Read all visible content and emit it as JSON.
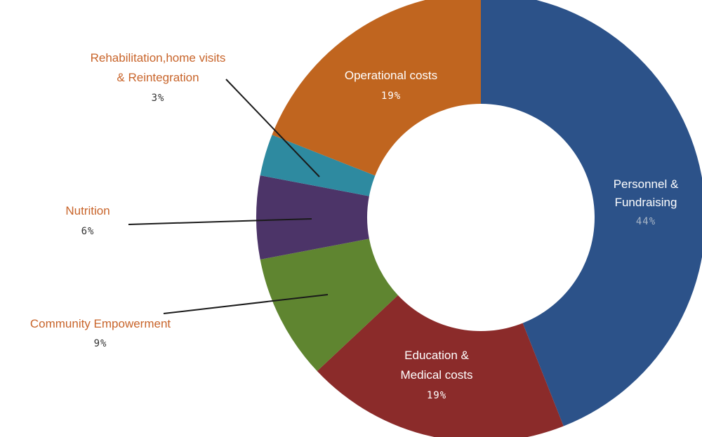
{
  "chart_data": {
    "type": "pie",
    "variant": "donut",
    "slices": [
      {
        "label_lines": [
          "Personnel &",
          "Fundraising"
        ],
        "value_label": "44%",
        "value": 44,
        "color": "#2c5289",
        "label_color": "#ffffff",
        "value_color": "#a8b5c6",
        "placement": "inside"
      },
      {
        "label_lines": [
          "Education &",
          "Medical costs"
        ],
        "value_label": "19%",
        "value": 19,
        "color": "#8b2b2a",
        "label_color": "#ffffff",
        "value_color": "#ffffff",
        "placement": "inside"
      },
      {
        "label_lines": [
          "Community Empowerment"
        ],
        "value_label": "9%",
        "value": 9,
        "color": "#5f8530",
        "label_color": "#c8642a",
        "value_color": "#333333",
        "placement": "outside"
      },
      {
        "label_lines": [
          "Nutrition"
        ],
        "value_label": "6%",
        "value": 6,
        "color": "#4c3468",
        "label_color": "#c8642a",
        "value_color": "#333333",
        "placement": "outside"
      },
      {
        "label_lines": [
          "Rehabilitation,home visits",
          "& Reintegration"
        ],
        "value_label": "3%",
        "value": 3,
        "color": "#2e8aa0",
        "label_color": "#c8642a",
        "value_color": "#333333",
        "placement": "outside"
      },
      {
        "label_lines": [
          "Operational costs"
        ],
        "value_label": "19%",
        "value": 19,
        "color": "#c0651f",
        "label_color": "#ffffff",
        "value_color": "#ffffff",
        "placement": "inside"
      }
    ],
    "start_angle_deg": 0,
    "direction": "clockwise",
    "legend": "none"
  }
}
